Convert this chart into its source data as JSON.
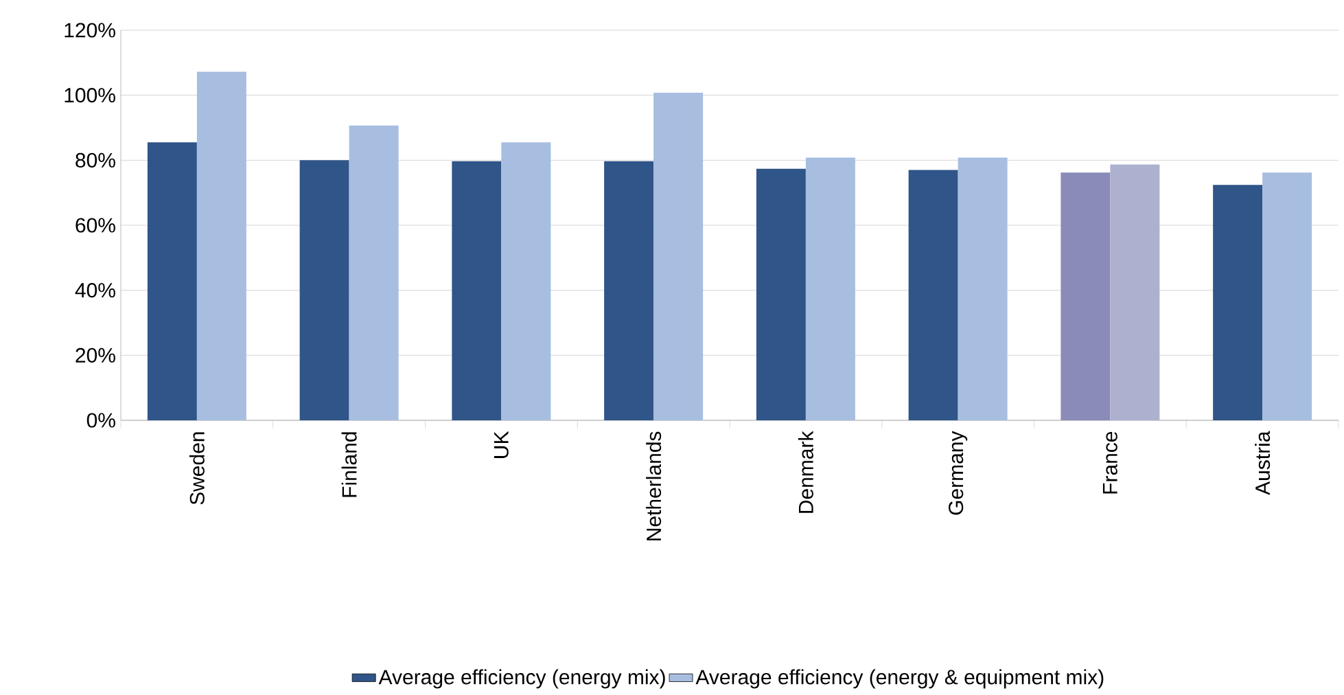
{
  "chart_data": {
    "type": "bar",
    "categories": [
      "Sweden",
      "Finland",
      "UK",
      "Netherlands",
      "Denmark",
      "Germany",
      "France",
      "Austria"
    ],
    "series": [
      {
        "name": "Average efficiency (energy mix)",
        "color": "#2f5589",
        "colors": [
          "#2f5589",
          "#2f5589",
          "#2f5589",
          "#2f5589",
          "#2f5589",
          "#2f5589",
          "#8a8bb8",
          "#2f5589"
        ],
        "values": [
          85.5,
          80.0,
          79.7,
          79.7,
          77.4,
          77.0,
          76.2,
          72.4
        ]
      },
      {
        "name": "Average efficiency (energy & equipment mix)",
        "color": "#a7bee0",
        "colors": [
          "#a7bee0",
          "#a7bee0",
          "#a7bee0",
          "#a7bee0",
          "#a7bee0",
          "#a7bee0",
          "#aeb0d0",
          "#a7bee0"
        ],
        "values": [
          107.2,
          90.7,
          85.5,
          100.8,
          80.8,
          80.8,
          78.7,
          76.2
        ]
      }
    ],
    "ylim": [
      0,
      120
    ],
    "yticks": [
      {
        "value": 0,
        "label": "0%"
      },
      {
        "value": 20,
        "label": "20%"
      },
      {
        "value": 40,
        "label": "40%"
      },
      {
        "value": 60,
        "label": "60%"
      },
      {
        "value": 80,
        "label": "80%"
      },
      {
        "value": 100,
        "label": "100%"
      },
      {
        "value": 120,
        "label": "120%"
      }
    ],
    "grid": "y",
    "legend": "bottom"
  }
}
